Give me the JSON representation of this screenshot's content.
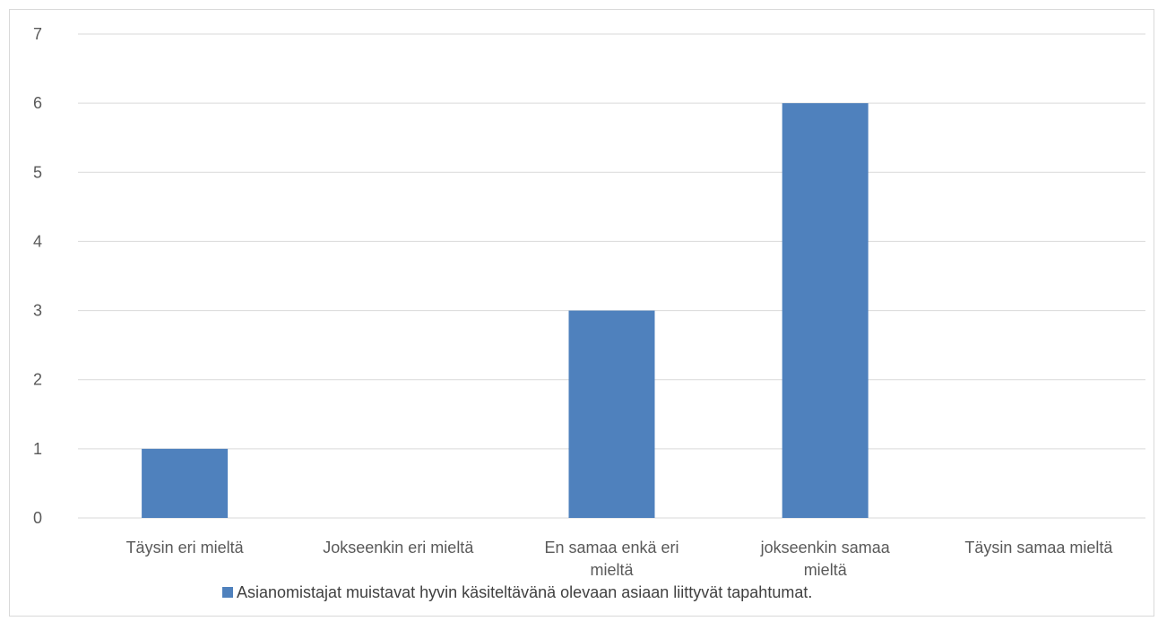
{
  "chart_data": {
    "type": "bar",
    "categories": [
      [
        "Täysin eri mieltä"
      ],
      [
        "Jokseenkin eri mieltä"
      ],
      [
        "En samaa enkä eri",
        "mieltä"
      ],
      [
        "jokseenkin samaa",
        "mieltä"
      ],
      [
        "Täysin samaa mieltä"
      ]
    ],
    "series": [
      {
        "name": "Asianomistajat muistavat hyvin käsiteltävänä olevaan asiaan liittyvät tapahtumat.",
        "values": [
          1,
          0,
          3,
          6,
          0
        ],
        "color": "#4f81bd"
      }
    ],
    "y_ticks": [
      0,
      1,
      2,
      3,
      4,
      5,
      6,
      7
    ],
    "ylim": [
      0,
      7
    ],
    "grid": true,
    "gridline_color": "#d9d9d9",
    "legend_position": "bottom",
    "title": "",
    "xlabel": "",
    "ylabel": ""
  }
}
